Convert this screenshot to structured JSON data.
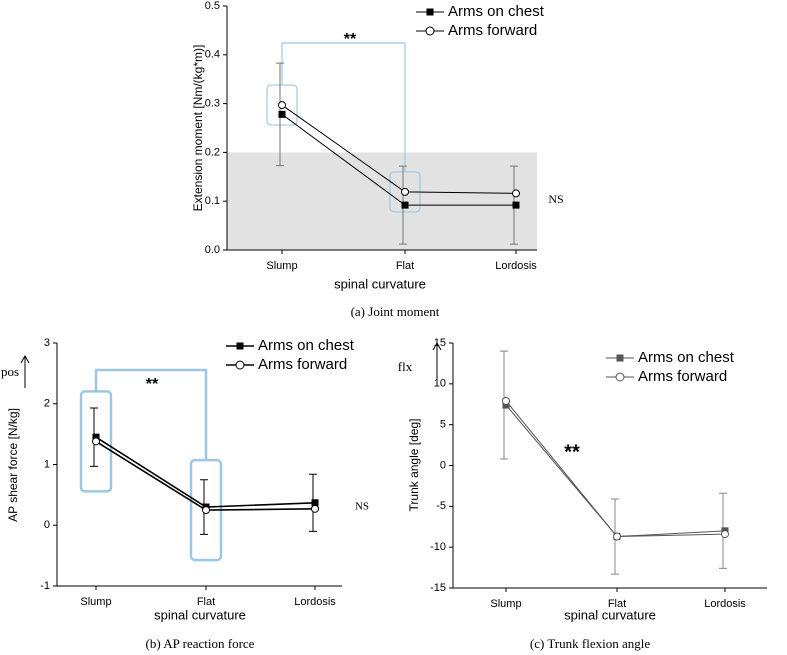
{
  "chart_data": [
    {
      "type": "line",
      "title": "(a) Joint moment",
      "x_label": "spinal curvature",
      "y_label": "Extension moment [Nm/(kg*m)]",
      "categories": [
        "Slump",
        "Flat",
        "Lordosis"
      ],
      "series": [
        {
          "name": "Arms on chest",
          "color": "#000000",
          "marker": "square",
          "values": [
            0.278,
            0.092,
            0.092
          ],
          "errors": [
            0.105,
            0.08,
            0.08
          ]
        },
        {
          "name": "Arms forward",
          "color": "#000000",
          "marker": "circle",
          "values": [
            0.297,
            0.119,
            0.116
          ]
        }
      ],
      "ylim": [
        0,
        0.5
      ],
      "yticks": [
        {
          "value": 0,
          "label": "0.0"
        },
        0.1,
        0.2,
        0.3,
        0.4,
        0.5
      ],
      "shaded_range": [
        0,
        0.2
      ],
      "legend": "top-right",
      "annotations": [
        "**",
        "NS"
      ]
    },
    {
      "type": "line",
      "title": "(b) AP reaction force",
      "x_label": "spinal curvature",
      "y_label": "AP shear force [N/kg]",
      "categories": [
        "Slump",
        "Flat",
        "Lordosis"
      ],
      "series": [
        {
          "name": "Arms on chest",
          "color": "#000000",
          "marker": "square",
          "values": [
            1.45,
            0.3,
            0.37
          ],
          "errors": [
            0.48,
            0.45,
            0.47
          ]
        },
        {
          "name": "Arms forward",
          "color": "#000000",
          "marker": "circle",
          "values": [
            1.38,
            0.25,
            0.27
          ]
        }
      ],
      "ylim": [
        -1,
        3
      ],
      "yticks": [
        -1,
        0,
        1,
        2,
        3
      ],
      "legend": "top-right",
      "annotations": [
        "**",
        "NS",
        "pos"
      ]
    },
    {
      "type": "line",
      "title": "(c) Trunk flexion angle",
      "x_label": "spinal curvature",
      "y_label": "Trunk angle [deg]",
      "categories": [
        "Slump",
        "Flat",
        "Lordosis"
      ],
      "series": [
        {
          "name": "Arms on chest",
          "color": "#555555",
          "marker": "square",
          "values": [
            7.4,
            -8.7,
            -8.0
          ],
          "errors": [
            6.6,
            4.6,
            4.6
          ]
        },
        {
          "name": "Arms forward",
          "color": "#555555",
          "marker": "circle",
          "values": [
            7.9,
            -8.7,
            -8.4
          ]
        }
      ],
      "ylim": [
        -15,
        15
      ],
      "yticks": [
        -15,
        -10,
        -5,
        0,
        5,
        10,
        15
      ],
      "legend": "top-right",
      "annotations": [
        "**",
        "flx"
      ]
    }
  ]
}
